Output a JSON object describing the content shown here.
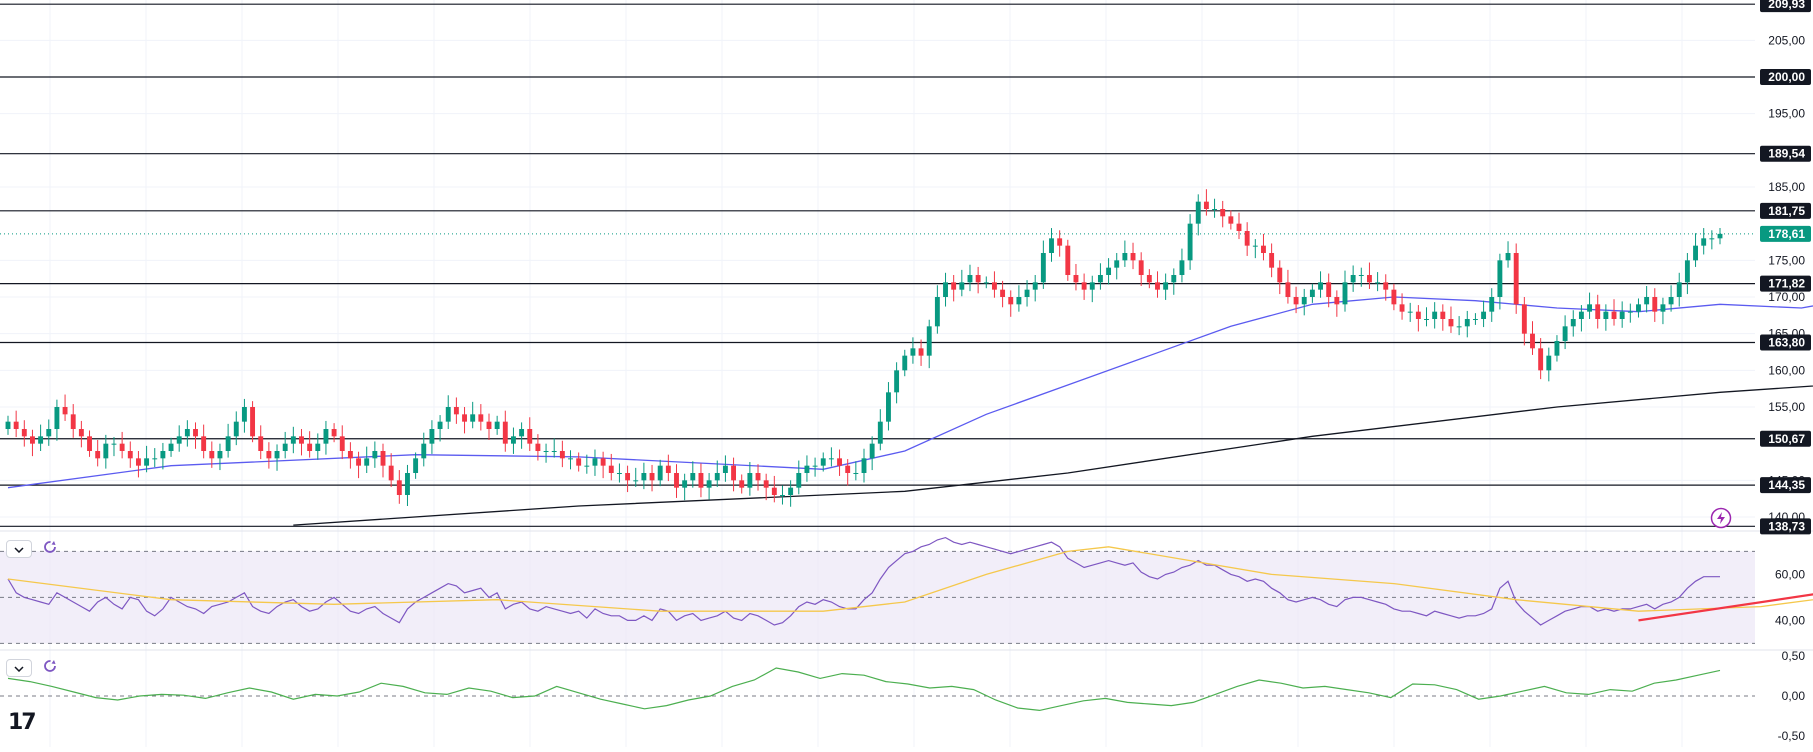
{
  "branding": {
    "logo_text": "17"
  },
  "colors": {
    "up": "#089981",
    "down": "#f23645",
    "ma_fast": "#5b5bf0",
    "ma_slow": "#131722",
    "rsi": "#7e57c2",
    "rsi_ma": "#f5c84c",
    "rsi_band": "#ede7f6",
    "trend": "#f23645",
    "macd": "#4caf50",
    "last_price": "#089981"
  },
  "chart_data": [
    {
      "type": "candlestick",
      "title": "Price",
      "ylim": [
        138.5,
        210.5
      ],
      "y_ticks": [
        "205,00",
        "195,00",
        "185,00",
        "175,00",
        "170,00",
        "165,00",
        "160,00",
        "155,00",
        "145,00",
        "140,00"
      ],
      "y_tick_values": [
        205,
        195,
        185,
        175,
        170,
        165,
        160,
        155,
        145,
        140
      ],
      "levels": [
        209.93,
        200.0,
        189.54,
        181.75,
        171.82,
        163.8,
        150.67,
        144.35,
        138.73
      ],
      "level_labels": [
        "209,93",
        "200,00",
        "189,54",
        "181,75",
        "171,82",
        "163,80",
        "150,67",
        "144,35",
        "138,73"
      ],
      "last_price": 178.61,
      "last_price_label": "178,61",
      "close": [
        153,
        152,
        151,
        150,
        151,
        152,
        155,
        154,
        152,
        151,
        149,
        148,
        150,
        150,
        149,
        148,
        147,
        148,
        148,
        149,
        150,
        151,
        152,
        151,
        149,
        148,
        149,
        151,
        153,
        155,
        151,
        149,
        148,
        149,
        150,
        151,
        150,
        149,
        150,
        152,
        151,
        149,
        148,
        147,
        148,
        149,
        147,
        145,
        143,
        146,
        148,
        150,
        152,
        153,
        155,
        154,
        153,
        154,
        153,
        152,
        153,
        150,
        151,
        152,
        150,
        149,
        149,
        149,
        148,
        148,
        147,
        147,
        148,
        147,
        146,
        146,
        145,
        145,
        146,
        145,
        147,
        146,
        144,
        145,
        146,
        144,
        145,
        146,
        147,
        145,
        144,
        146,
        145,
        144,
        143,
        143,
        144,
        146,
        147,
        147,
        148,
        148,
        147,
        146,
        146,
        148,
        150,
        153,
        157,
        160,
        162,
        163,
        162,
        166,
        170,
        172,
        171,
        172,
        173,
        172,
        172,
        171,
        170,
        169,
        170,
        171,
        172,
        176,
        178,
        177,
        173,
        172,
        171,
        172,
        173,
        174,
        175,
        176,
        175,
        173,
        172,
        171,
        172,
        173,
        175,
        180,
        183,
        182,
        182,
        181,
        180,
        179,
        177,
        177,
        176,
        174,
        172,
        170,
        169,
        170,
        171,
        172,
        170,
        169,
        172,
        173,
        173,
        172,
        172,
        171,
        169,
        168,
        168,
        167,
        167,
        168,
        167,
        166,
        166,
        167,
        167,
        168,
        170,
        175,
        176,
        169,
        165,
        163,
        160,
        162,
        164,
        166,
        167,
        168,
        169,
        167,
        168,
        167,
        168,
        168,
        169,
        170,
        168,
        169,
        170,
        172,
        175,
        177,
        178,
        178,
        178.61
      ],
      "ma_fast": [
        {
          "i": 0,
          "v": 144
        },
        {
          "i": 20,
          "v": 147
        },
        {
          "i": 50,
          "v": 148.5
        },
        {
          "i": 70,
          "v": 148.2
        },
        {
          "i": 100,
          "v": 146.5
        },
        {
          "i": 110,
          "v": 149
        },
        {
          "i": 120,
          "v": 154
        },
        {
          "i": 130,
          "v": 158
        },
        {
          "i": 140,
          "v": 162
        },
        {
          "i": 150,
          "v": 166
        },
        {
          "i": 160,
          "v": 169
        },
        {
          "i": 170,
          "v": 170
        },
        {
          "i": 180,
          "v": 169.5
        },
        {
          "i": 190,
          "v": 168.5
        },
        {
          "i": 200,
          "v": 168
        },
        {
          "i": 210,
          "v": 169
        },
        {
          "i": 220,
          "v": 168.5
        },
        {
          "i": 230,
          "v": 170.5
        }
      ],
      "ma_slow": [
        {
          "i": 35,
          "v": 138.9
        },
        {
          "i": 70,
          "v": 141.5
        },
        {
          "i": 110,
          "v": 143.5
        },
        {
          "i": 130,
          "v": 146
        },
        {
          "i": 160,
          "v": 151
        },
        {
          "i": 190,
          "v": 155
        },
        {
          "i": 210,
          "v": 157
        },
        {
          "i": 230,
          "v": 158.5
        }
      ]
    },
    {
      "type": "line",
      "title": "RSI",
      "ylim": [
        28,
        78
      ],
      "y_ticks": [
        "60,00",
        "40,00"
      ],
      "y_tick_values": [
        60,
        40
      ],
      "bands": [
        70,
        50,
        30
      ],
      "rsi": [
        58,
        52,
        50,
        49,
        48,
        47,
        52,
        50,
        48,
        46,
        44,
        48,
        50,
        47,
        45,
        50,
        49,
        44,
        42,
        45,
        50,
        48,
        46,
        45,
        43,
        46,
        47,
        48,
        50,
        52,
        46,
        44,
        43,
        46,
        48,
        49,
        46,
        44,
        45,
        48,
        50,
        47,
        44,
        43,
        45,
        46,
        43,
        41,
        39,
        45,
        48,
        50,
        52,
        54,
        56,
        55,
        52,
        53,
        54,
        50,
        52,
        45,
        47,
        48,
        45,
        44,
        46,
        45,
        44,
        43,
        44,
        41,
        45,
        43,
        42,
        42,
        40,
        40,
        42,
        40,
        45,
        44,
        40,
        42,
        43,
        40,
        41,
        42,
        44,
        41,
        40,
        43,
        42,
        40,
        38,
        39,
        42,
        46,
        48,
        47,
        49,
        48,
        46,
        45,
        45,
        49,
        52,
        58,
        63,
        66,
        69,
        70,
        72,
        73,
        75,
        76,
        74,
        73,
        74,
        73,
        72,
        71,
        70,
        69,
        70,
        71,
        72,
        73,
        74,
        72,
        67,
        65,
        63,
        64,
        65,
        66,
        65,
        64,
        65,
        61,
        59,
        58,
        60,
        61,
        63,
        64,
        66,
        64,
        64,
        62,
        60,
        59,
        57,
        58,
        57,
        54,
        52,
        49,
        48,
        49,
        50,
        49,
        47,
        46,
        49,
        50,
        50,
        49,
        48,
        47,
        45,
        44,
        44,
        43,
        42,
        44,
        43,
        42,
        41,
        42,
        42,
        43,
        45,
        54,
        57,
        48,
        44,
        41,
        38,
        40,
        42,
        44,
        45,
        46,
        46,
        44,
        45,
        44,
        45,
        45,
        46,
        47,
        45,
        47,
        48,
        50,
        54,
        57,
        59,
        59,
        59
      ],
      "rsi_ma": [
        {
          "i": 0,
          "v": 58
        },
        {
          "i": 20,
          "v": 49
        },
        {
          "i": 40,
          "v": 47
        },
        {
          "i": 60,
          "v": 49
        },
        {
          "i": 80,
          "v": 44
        },
        {
          "i": 100,
          "v": 44
        },
        {
          "i": 110,
          "v": 48
        },
        {
          "i": 120,
          "v": 60
        },
        {
          "i": 130,
          "v": 70
        },
        {
          "i": 135,
          "v": 72
        },
        {
          "i": 145,
          "v": 66
        },
        {
          "i": 155,
          "v": 60
        },
        {
          "i": 170,
          "v": 56
        },
        {
          "i": 185,
          "v": 49
        },
        {
          "i": 200,
          "v": 44
        },
        {
          "i": 215,
          "v": 46
        },
        {
          "i": 230,
          "v": 53
        }
      ],
      "trendline": [
        {
          "i": 200,
          "v": 40
        },
        {
          "i": 236,
          "v": 59
        }
      ]
    },
    {
      "type": "line",
      "title": "Momentum",
      "ylim": [
        -0.55,
        0.55
      ],
      "y_ticks": [
        "0,50",
        "0,00",
        "-0,50"
      ],
      "y_tick_values": [
        0.5,
        0.0,
        -0.5
      ],
      "zero_line": 0,
      "values": [
        0.22,
        0.18,
        0.12,
        0.05,
        -0.02,
        -0.05,
        0.0,
        0.02,
        0.01,
        -0.03,
        0.04,
        0.1,
        0.05,
        -0.04,
        0.02,
        0.0,
        0.05,
        0.16,
        0.12,
        0.04,
        0.02,
        0.1,
        0.06,
        -0.02,
        0.0,
        0.12,
        0.04,
        -0.04,
        -0.1,
        -0.16,
        -0.12,
        -0.05,
        0.0,
        0.12,
        0.2,
        0.35,
        0.3,
        0.22,
        0.28,
        0.26,
        0.18,
        0.15,
        0.1,
        0.12,
        0.08,
        -0.05,
        -0.15,
        -0.18,
        -0.12,
        -0.06,
        -0.03,
        -0.08,
        -0.1,
        -0.12,
        -0.08,
        0.02,
        0.12,
        0.2,
        0.16,
        0.1,
        0.12,
        0.08,
        0.04,
        -0.02,
        0.15,
        0.14,
        0.08,
        -0.04,
        0.0,
        0.06,
        0.12,
        0.04,
        0.02,
        0.08,
        0.06,
        0.16,
        0.2,
        0.26,
        0.32
      ]
    }
  ],
  "controls": {
    "rsi_collapse": "chevron-down-icon",
    "rsi_refresh": "refresh-icon",
    "macd_collapse": "chevron-down-icon",
    "macd_refresh": "refresh-icon",
    "alert": "lightning-icon"
  }
}
